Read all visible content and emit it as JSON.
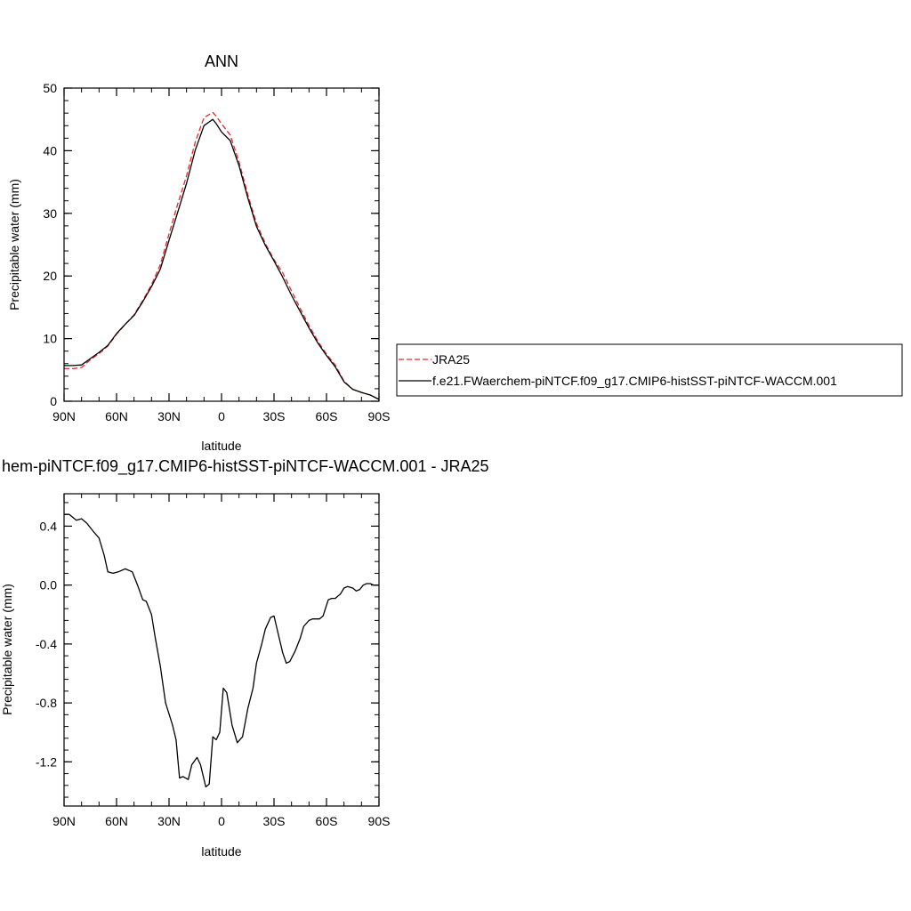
{
  "chart_data": [
    {
      "type": "line",
      "title": "ANN",
      "xlabel": "latitude",
      "ylabel": "Precipitable water (mm)",
      "xlim": [
        90,
        -90
      ],
      "ylim": [
        0,
        50
      ],
      "xticks": [
        90,
        60,
        30,
        0,
        -30,
        -60,
        -90
      ],
      "xtick_labels": [
        "90N",
        "60N",
        "30N",
        "0",
        "30S",
        "60S",
        "90S"
      ],
      "yticks": [
        0,
        10,
        20,
        30,
        40,
        50
      ],
      "ytick_labels": [
        "0",
        "10",
        "20",
        "30",
        "40",
        "50"
      ],
      "legend_position": "right",
      "series": [
        {
          "name": "JRA25",
          "color": "#e8282d",
          "dash": "dashed",
          "points": [
            [
              90,
              5.2
            ],
            [
              85,
              5.2
            ],
            [
              80,
              5.4
            ],
            [
              75,
              6.6
            ],
            [
              70,
              7.6
            ],
            [
              65,
              8.8
            ],
            [
              60,
              10.7
            ],
            [
              55,
              12.3
            ],
            [
              50,
              13.8
            ],
            [
              45,
              16.1
            ],
            [
              40,
              18.6
            ],
            [
              35,
              21.8
            ],
            [
              30,
              26.7
            ],
            [
              25,
              31.5
            ],
            [
              20,
              36.0
            ],
            [
              15,
              41.4
            ],
            [
              10,
              45.3
            ],
            [
              5,
              46.1
            ],
            [
              3,
              45.5
            ],
            [
              0,
              44.3
            ],
            [
              -5,
              42.5
            ],
            [
              -10,
              38.2
            ],
            [
              -15,
              33.0
            ],
            [
              -20,
              28.4
            ],
            [
              -25,
              25.2
            ],
            [
              -30,
              22.6
            ],
            [
              -35,
              20.5
            ],
            [
              -40,
              17.6
            ],
            [
              -45,
              14.8
            ],
            [
              -50,
              12.1
            ],
            [
              -55,
              9.6
            ],
            [
              -60,
              7.5
            ],
            [
              -65,
              5.8
            ],
            [
              -70,
              3.2
            ],
            [
              -75,
              1.9
            ],
            [
              -80,
              1.4
            ],
            [
              -85,
              1.0
            ],
            [
              -90,
              0.3
            ]
          ]
        },
        {
          "name": "f.e21.FWaerchem-piNTCF.f09_g17.CMIP6-histSST-piNTCF-WACCM.001",
          "color": "#000000",
          "dash": "solid",
          "points": [
            [
              90,
              5.7
            ],
            [
              85,
              5.7
            ],
            [
              80,
              5.8
            ],
            [
              75,
              6.8
            ],
            [
              70,
              7.8
            ],
            [
              65,
              8.9
            ],
            [
              60,
              10.8
            ],
            [
              55,
              12.3
            ],
            [
              50,
              13.7
            ],
            [
              45,
              15.9
            ],
            [
              40,
              18.3
            ],
            [
              35,
              21.1
            ],
            [
              30,
              25.7
            ],
            [
              25,
              30.2
            ],
            [
              20,
              34.8
            ],
            [
              15,
              40.1
            ],
            [
              10,
              44.0
            ],
            [
              5,
              45.0
            ],
            [
              3,
              44.3
            ],
            [
              0,
              43.0
            ],
            [
              -5,
              41.6
            ],
            [
              -10,
              37.6
            ],
            [
              -15,
              32.5
            ],
            [
              -20,
              27.9
            ],
            [
              -25,
              24.9
            ],
            [
              -30,
              22.4
            ],
            [
              -35,
              19.8
            ],
            [
              -40,
              16.9
            ],
            [
              -45,
              14.3
            ],
            [
              -50,
              11.7
            ],
            [
              -55,
              9.3
            ],
            [
              -60,
              7.3
            ],
            [
              -65,
              5.5
            ],
            [
              -70,
              3.1
            ],
            [
              -75,
              1.9
            ],
            [
              -80,
              1.4
            ],
            [
              -85,
              1.0
            ],
            [
              -90,
              0.3
            ]
          ]
        }
      ]
    },
    {
      "type": "line",
      "title": "hem-piNTCF.f09_g17.CMIP6-histSST-piNTCF-WACCM.001 - JRA25",
      "xlabel": "latitude",
      "ylabel": "Precipitable water (mm)",
      "xlim": [
        90,
        -90
      ],
      "ylim": [
        -1.5,
        0.62
      ],
      "xticks": [
        90,
        60,
        30,
        0,
        -30,
        -60,
        -90
      ],
      "xtick_labels": [
        "90N",
        "60N",
        "30N",
        "0",
        "30S",
        "60S",
        "90S"
      ],
      "yticks": [
        0.4,
        0.0,
        -0.4,
        -0.8,
        -1.2
      ],
      "ytick_labels": [
        "0.4",
        "0.0",
        "-0.4",
        "-0.8",
        "-1.2"
      ],
      "series": [
        {
          "color": "#000000",
          "dash": "solid",
          "points": [
            [
              90,
              0.48
            ],
            [
              87,
              0.48
            ],
            [
              83,
              0.44
            ],
            [
              80,
              0.45
            ],
            [
              77,
              0.42
            ],
            [
              73,
              0.36
            ],
            [
              70,
              0.32
            ],
            [
              67,
              0.2
            ],
            [
              65,
              0.09
            ],
            [
              62,
              0.08
            ],
            [
              59,
              0.09
            ],
            [
              55,
              0.11
            ],
            [
              51,
              0.09
            ],
            [
              48,
              0.0
            ],
            [
              45,
              -0.1
            ],
            [
              43,
              -0.11
            ],
            [
              40,
              -0.2
            ],
            [
              38,
              -0.35
            ],
            [
              35,
              -0.55
            ],
            [
              32,
              -0.8
            ],
            [
              28,
              -0.95
            ],
            [
              26,
              -1.05
            ],
            [
              24,
              -1.31
            ],
            [
              22,
              -1.3
            ],
            [
              19,
              -1.32
            ],
            [
              17,
              -1.22
            ],
            [
              14,
              -1.17
            ],
            [
              12,
              -1.22
            ],
            [
              9,
              -1.37
            ],
            [
              7,
              -1.35
            ],
            [
              5,
              -1.03
            ],
            [
              3,
              -1.05
            ],
            [
              1,
              -1.0
            ],
            [
              -1,
              -0.7
            ],
            [
              -3,
              -0.73
            ],
            [
              -6,
              -0.95
            ],
            [
              -9,
              -1.07
            ],
            [
              -12,
              -1.03
            ],
            [
              -15,
              -0.84
            ],
            [
              -18,
              -0.7
            ],
            [
              -20,
              -0.53
            ],
            [
              -23,
              -0.4
            ],
            [
              -25,
              -0.3
            ],
            [
              -28,
              -0.22
            ],
            [
              -30,
              -0.21
            ],
            [
              -32,
              -0.31
            ],
            [
              -35,
              -0.46
            ],
            [
              -37,
              -0.53
            ],
            [
              -39,
              -0.52
            ],
            [
              -42,
              -0.45
            ],
            [
              -45,
              -0.36
            ],
            [
              -47,
              -0.28
            ],
            [
              -50,
              -0.24
            ],
            [
              -52,
              -0.23
            ],
            [
              -56,
              -0.23
            ],
            [
              -58,
              -0.21
            ],
            [
              -61,
              -0.1
            ],
            [
              -63,
              -0.09
            ],
            [
              -65,
              -0.09
            ],
            [
              -68,
              -0.06
            ],
            [
              -70,
              -0.02
            ],
            [
              -72,
              -0.01
            ],
            [
              -75,
              -0.02
            ],
            [
              -77,
              -0.04
            ],
            [
              -79,
              -0.03
            ],
            [
              -81,
              0.0
            ],
            [
              -83,
              0.01
            ],
            [
              -85,
              0.01
            ],
            [
              -87,
              0.0
            ],
            [
              -90,
              0.0
            ]
          ]
        }
      ]
    }
  ]
}
